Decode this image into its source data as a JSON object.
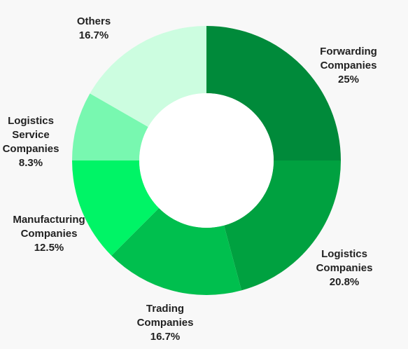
{
  "chart_data": {
    "type": "pie",
    "donut": true,
    "start_angle_deg": 0,
    "direction": "clockwise",
    "slices": [
      {
        "label_lines": [
          "Forwarding",
          "Companies"
        ],
        "value": 25,
        "value_label": "25%",
        "color": "#008a3a"
      },
      {
        "label_lines": [
          "Logistics",
          "Companies"
        ],
        "value": 20.8,
        "value_label": "20.8%",
        "color": "#00a140"
      },
      {
        "label_lines": [
          "Trading",
          "Companies"
        ],
        "value": 16.7,
        "value_label": "16.7%",
        "color": "#00bf4e"
      },
      {
        "label_lines": [
          "Manufacturing",
          "Companies"
        ],
        "value": 12.5,
        "value_label": "12.5%",
        "color": "#00f466"
      },
      {
        "label_lines": [
          "Logistics",
          "Service",
          "Companies"
        ],
        "value": 8.3,
        "value_label": "8.3%",
        "color": "#78f8b0"
      },
      {
        "label_lines": [
          "Others"
        ],
        "value": 16.7,
        "value_label": "16.7%",
        "color": "#ccfde0"
      }
    ]
  }
}
